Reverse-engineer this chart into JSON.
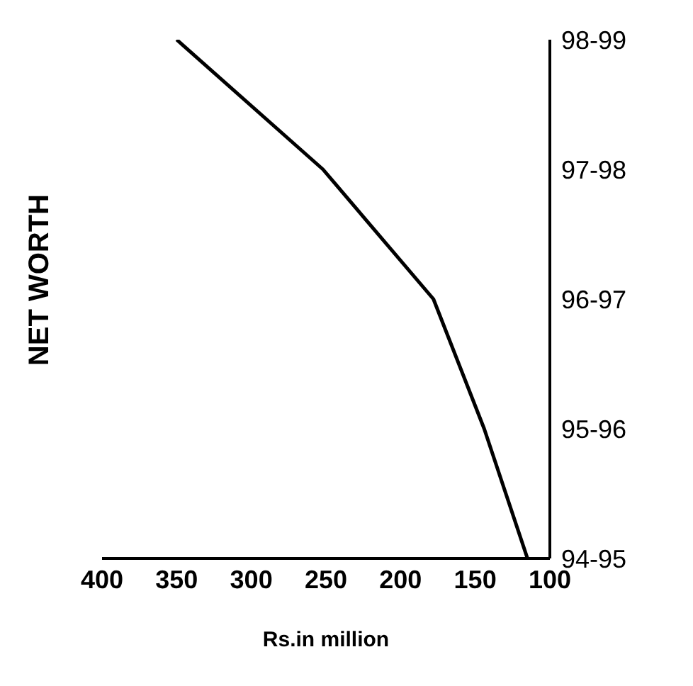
{
  "chart_data": {
    "type": "line",
    "title": "NET WORTH",
    "xlabel": "Rs.in million",
    "orientation": "horizontal",
    "categories": [
      "98-99",
      "97-98",
      "96-97",
      "95-96",
      "94-95"
    ],
    "series": [
      {
        "color": "#000000",
        "values": [
          350,
          252,
          178,
          144,
          115
        ]
      }
    ],
    "xlim": [
      400,
      100
    ],
    "xticks": [
      400,
      350,
      300,
      250,
      200,
      150,
      100
    ],
    "grid": false,
    "marker": "none",
    "line_style": "solid"
  }
}
